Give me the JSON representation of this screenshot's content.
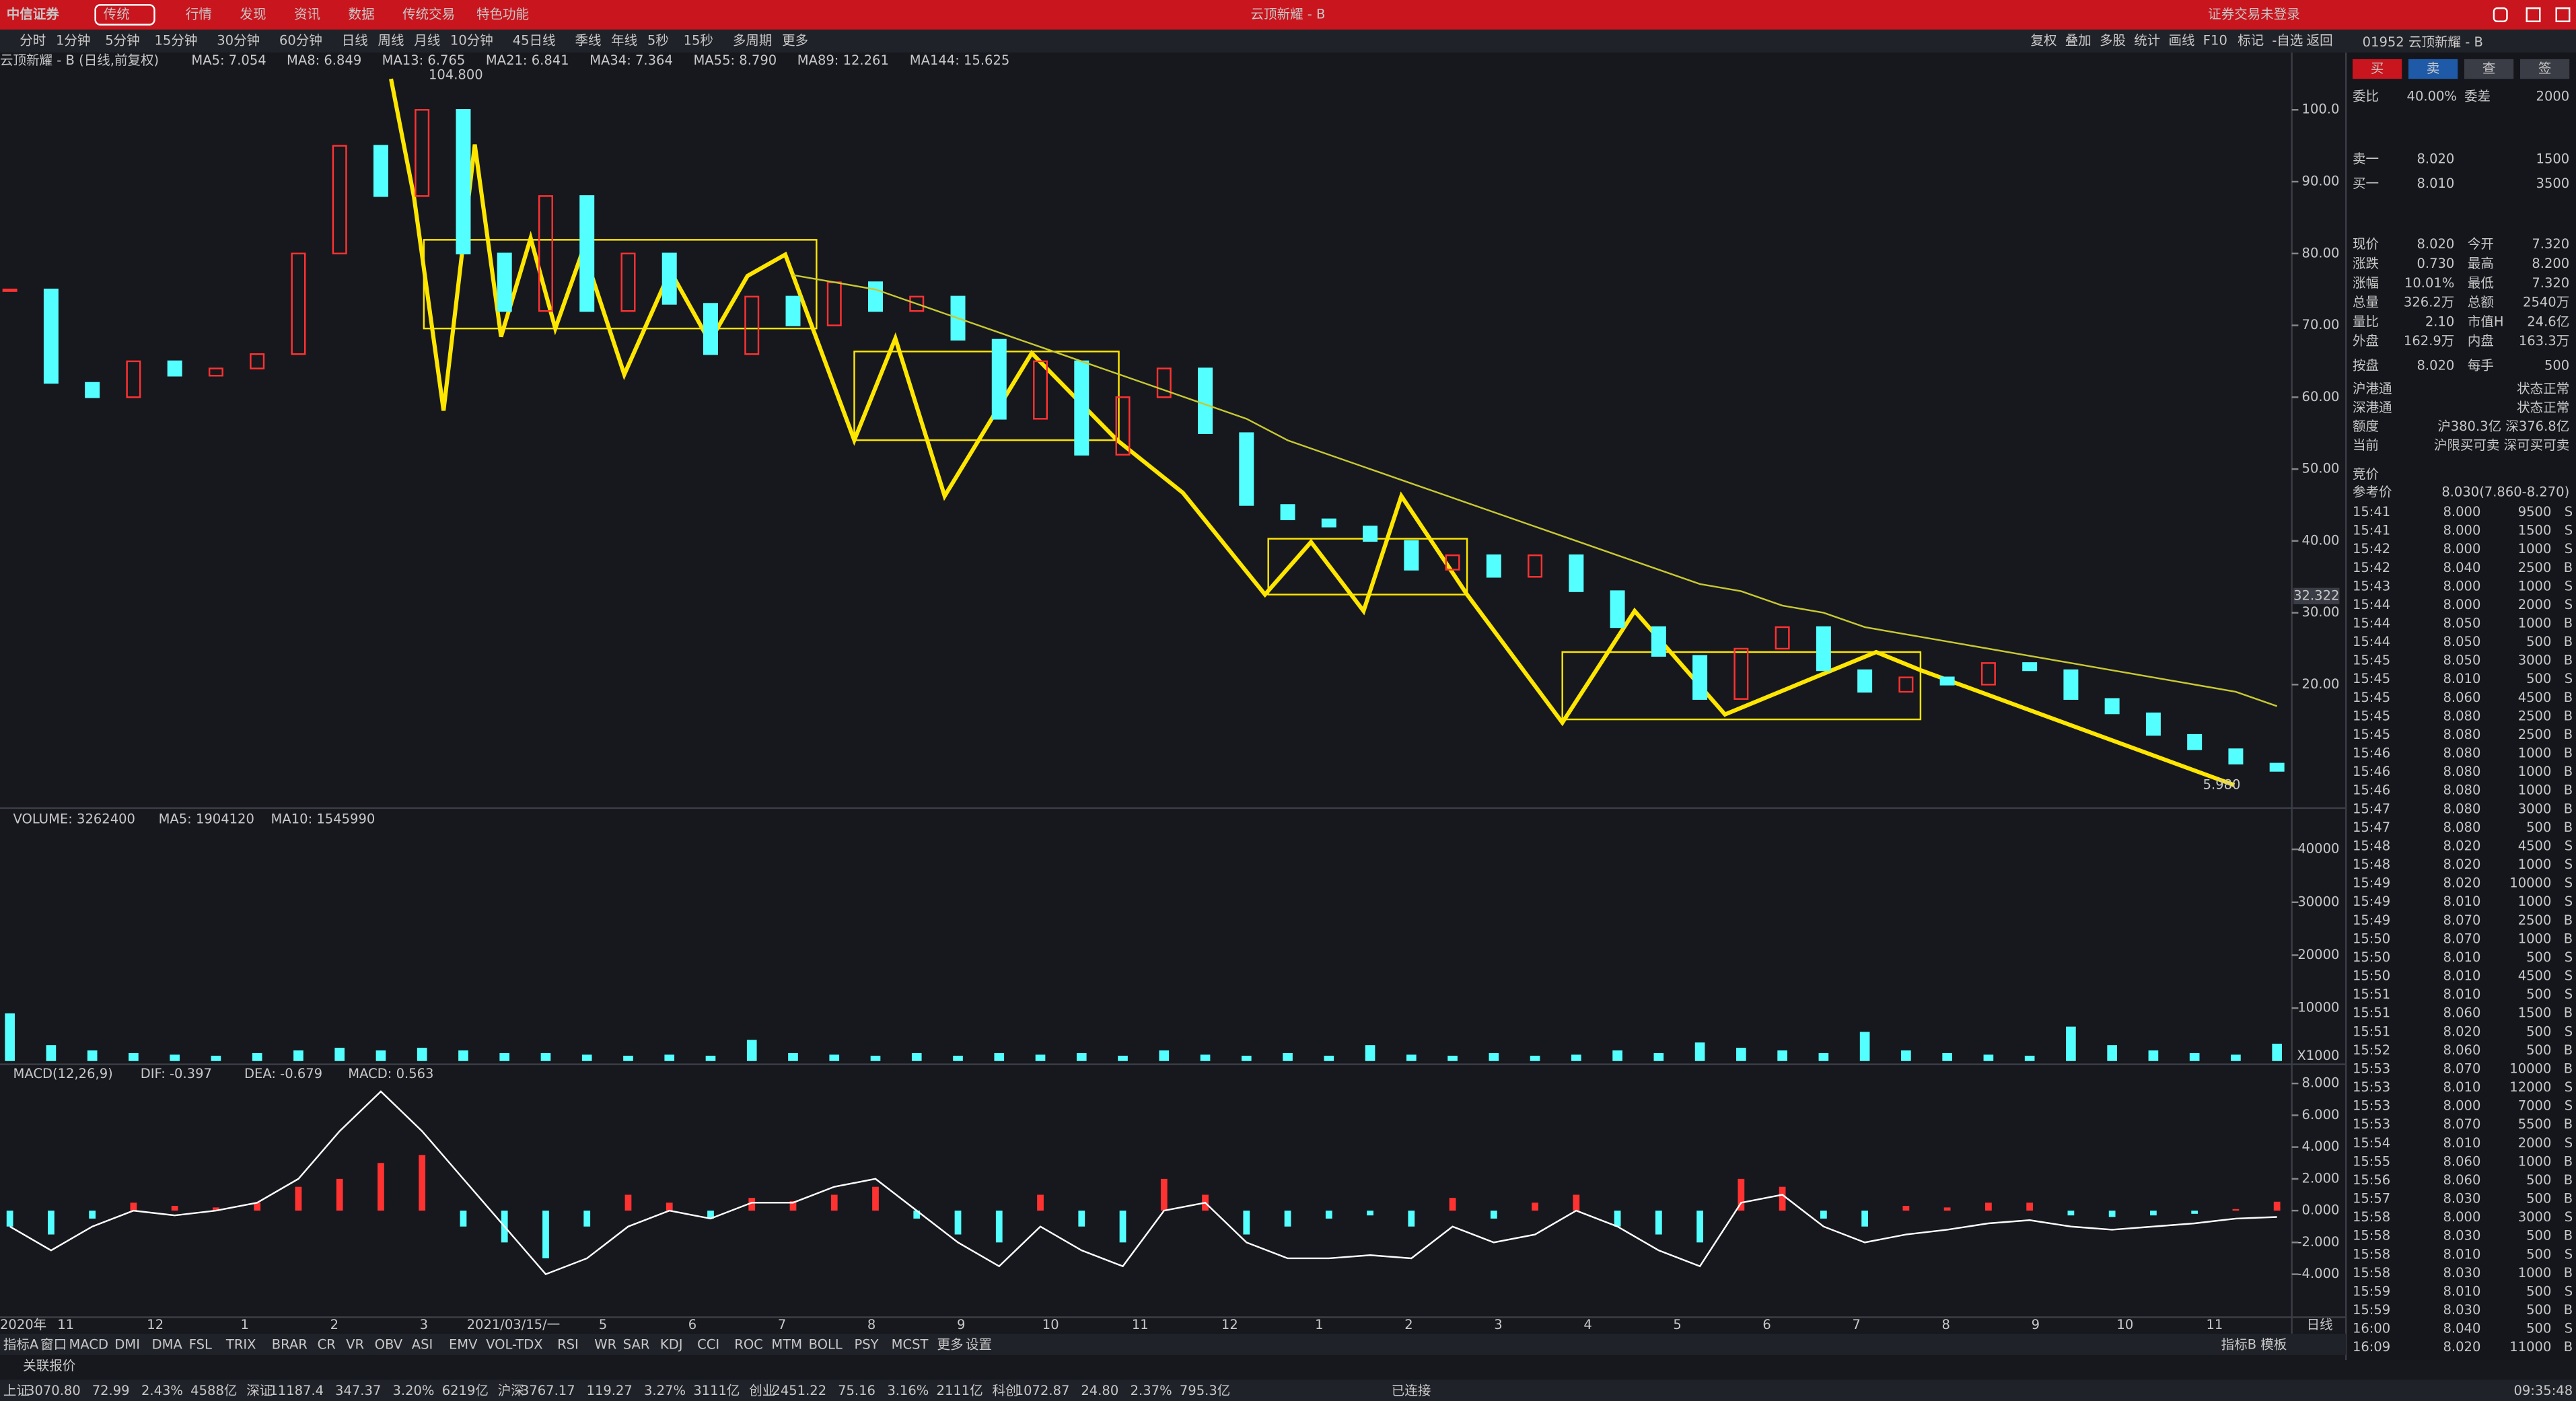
{
  "titlebar": {
    "logo": "中信证券",
    "mode": "传统",
    "nav": [
      "行情",
      "发现",
      "资讯",
      "数据",
      "传统交易",
      "特色功能"
    ],
    "title": "云顶新耀 - B",
    "login": "证券交易未登录"
  },
  "periods": [
    "分时",
    "1分钟",
    "5分钟",
    "15分钟",
    "30分钟",
    "60分钟",
    "日线",
    "周线",
    "月线",
    "10分钟",
    "45日线",
    "季线",
    "年线",
    "5秒",
    "15秒",
    "多周期",
    "更多"
  ],
  "tools": [
    "复权",
    "叠加",
    "多股",
    "统计",
    "画线",
    "F10",
    "标记",
    "-自选",
    "返回"
  ],
  "chart_data": [
    {
      "type": "candlestick",
      "title": "云顶新耀 - B (日线,前复权)",
      "indicators": [
        {
          "text": "MA5: 7.054",
          "color": "#ffffff"
        },
        {
          "text": "MA8: 6.849",
          "color": "#e8c800"
        },
        {
          "text": "MA13: 6.765",
          "color": "#d040d0"
        },
        {
          "text": "MA21: 6.841",
          "color": "#40e040"
        },
        {
          "text": "MA34: 7.364",
          "color": "#cccccc"
        },
        {
          "text": "MA55: 8.790",
          "color": "#3a9ad9"
        },
        {
          "text": "MA89: 12.261",
          "color": "#cccccc"
        },
        {
          "text": "MA144: 15.625",
          "color": "#e8e800"
        }
      ],
      "ylim": [
        3.5,
        105
      ],
      "yticks": [
        {
          "value": 100,
          "label": "100.0"
        },
        {
          "value": 90,
          "label": "90.00"
        },
        {
          "value": 80,
          "label": "80.00"
        },
        {
          "value": 70,
          "label": "70.00"
        },
        {
          "value": 60,
          "label": "60.00"
        },
        {
          "value": 50,
          "label": "50.00"
        },
        {
          "value": 40,
          "label": "40.00"
        },
        {
          "value": 30,
          "label": "30.00"
        },
        {
          "value": 20,
          "label": "20.00"
        }
      ],
      "up_color": "#ff3232",
      "down_color": "#54ffff",
      "values": [
        75,
        62,
        60,
        65,
        63,
        64,
        66,
        80,
        95,
        88,
        100,
        80,
        72,
        88,
        72,
        80,
        73,
        66,
        74,
        70,
        76,
        72,
        74,
        68,
        57,
        65,
        52,
        60,
        64,
        55,
        45,
        43,
        42,
        40,
        36,
        38,
        35,
        38,
        33,
        28,
        24,
        18,
        25,
        28,
        22,
        19,
        21,
        20,
        23,
        22,
        18,
        16,
        13,
        11,
        9,
        8
      ],
      "lines": [
        {
          "color": "#c8c832",
          "values": [
            null,
            null,
            null,
            null,
            null,
            null,
            null,
            null,
            null,
            null,
            null,
            null,
            null,
            null,
            null,
            null,
            null,
            null,
            null,
            77,
            76,
            75,
            73,
            71,
            69,
            67,
            65,
            63,
            61,
            59,
            57,
            54,
            52,
            50,
            48,
            46,
            44,
            42,
            40,
            38,
            36,
            34,
            33,
            31,
            30,
            28,
            27,
            26,
            25,
            24,
            23,
            22,
            21,
            20,
            19,
            17
          ]
        }
      ],
      "annotations": [
        {
          "value": 104.8,
          "label": "104.800"
        },
        {
          "value": 5.98,
          "label": "5.980"
        },
        {
          "value": 32.322,
          "label": "32.322"
        }
      ]
    },
    {
      "type": "bar",
      "title": "VOLUME: 3262400",
      "indicators": [
        {
          "text": "MA5: 1904120",
          "color": "#ffffff"
        },
        {
          "text": "MA10: 1545990",
          "color": "#e8c800"
        }
      ],
      "ylim": [
        0,
        45000
      ],
      "yticks": [
        40000,
        30000,
        20000,
        10000
      ],
      "unit": "X1000",
      "color": "#54ffff",
      "values": [
        9000,
        3000,
        2000,
        1500,
        1200,
        1000,
        1500,
        2000,
        2500,
        2000,
        2500,
        2000,
        1500,
        1500,
        1200,
        1000,
        1200,
        1000,
        4000,
        1500,
        1200,
        1000,
        1500,
        1000,
        1500,
        1200,
        1500,
        1000,
        2000,
        1200,
        1000,
        1500,
        1000,
        3000,
        1200,
        1000,
        1500,
        1000,
        1200,
        2000,
        1500,
        3500,
        2500,
        2000,
        1500,
        5500,
        2000,
        1500,
        1200,
        1000,
        6500,
        3000,
        2000,
        1500,
        1200,
        3262
      ]
    },
    {
      "type": "macd",
      "title": "MACD(12,26,9)",
      "indicators": [
        {
          "text": "DIF: -0.397",
          "color": "#ffffff"
        },
        {
          "text": "DEA: -0.679",
          "color": "#e8c800"
        },
        {
          "text": "MACD: 0.563",
          "color": "#d040d0"
        }
      ],
      "ylim": [
        -6.5,
        9
      ],
      "yticks": [
        {
          "value": 8,
          "label": "8.000"
        },
        {
          "value": 6,
          "label": "6.000"
        },
        {
          "value": 4,
          "label": "4.000"
        },
        {
          "value": 2,
          "label": "2.000"
        },
        {
          "value": 0,
          "label": "0.000"
        },
        {
          "value": -2,
          "label": "-2.000"
        },
        {
          "value": -4,
          "label": "-4.000"
        }
      ],
      "values": [
        -1,
        -1.5,
        -0.5,
        0.5,
        0.3,
        0.2,
        0.5,
        1.5,
        2,
        3,
        3.5,
        -1,
        -2,
        -3,
        -1,
        1,
        0.5,
        -0.5,
        0.8,
        0.6,
        1,
        1.5,
        -0.5,
        -1.5,
        -2,
        1,
        -1,
        -2,
        2,
        1,
        -1.5,
        -1,
        -0.5,
        -0.3,
        -1,
        0.8,
        -0.5,
        0.5,
        1,
        -1,
        -1.5,
        -2,
        2,
        1.5,
        -0.5,
        -1,
        0.3,
        0.2,
        0.5,
        0.5,
        -0.3,
        -0.4,
        -0.3,
        -0.2,
        0.1,
        0.563
      ],
      "dif": [
        -1,
        -2.5,
        -1,
        0,
        -0.3,
        0,
        0.5,
        2,
        5,
        7.5,
        5,
        2,
        -1,
        -4,
        -3,
        -1,
        0,
        -0.5,
        0.5,
        0.5,
        1.5,
        2,
        0,
        -2,
        -3.5,
        -1,
        -2.5,
        -3.5,
        0,
        0.5,
        -2,
        -3,
        -3,
        -2.8,
        -3,
        -1,
        -2,
        -1.5,
        0,
        -1,
        -2.5,
        -3.5,
        0.5,
        1,
        -1,
        -2,
        -1.5,
        -1.2,
        -0.8,
        -0.6,
        -1,
        -1.2,
        -1,
        -0.8,
        -0.5,
        -0.397
      ]
    }
  ],
  "date_axis": [
    "2020年",
    "11",
    "12",
    "1",
    "2",
    "3",
    "2021/03/15/一",
    "5",
    "6",
    "7",
    "8",
    "9",
    "10",
    "11",
    "12",
    "1",
    "2",
    "3",
    "4",
    "5",
    "6",
    "7",
    "8",
    "9",
    "10",
    "11"
  ],
  "period_label": "日线",
  "indicator_tabs": [
    "指标A",
    "窗口",
    "MACD",
    "DMI",
    "DMA",
    "FSL",
    "TRIX",
    "BRAR",
    "CR",
    "VR",
    "OBV",
    "ASI",
    "EMV",
    "VOL-TDX",
    "RSI",
    "WR",
    "SAR",
    "KDJ",
    "CCI",
    "ROC",
    "MTM",
    "BOLL",
    "PSY",
    "MCST",
    "更多",
    "设置"
  ],
  "right_tabs": [
    "指标B",
    "模板"
  ],
  "related": "关联报价",
  "quote": {
    "code": "01952",
    "name": "云顶新耀 - B",
    "buttons": [
      "买",
      "卖",
      "查",
      "签"
    ],
    "book": [
      [
        "委比",
        "40.00%",
        "委差",
        "2000"
      ],
      [
        "卖一",
        "8.020",
        "1500"
      ],
      [
        "买一",
        "8.010",
        "3500"
      ]
    ],
    "stats": [
      [
        "现价",
        "8.020",
        "今开",
        "7.320"
      ],
      [
        "涨跌",
        "0.730",
        "最高",
        "8.200"
      ],
      [
        "涨幅",
        "10.01%",
        "最低",
        "7.320"
      ],
      [
        "总量",
        "326.2万",
        "总额",
        "2540万"
      ],
      [
        "量比",
        "2.10",
        "市值H",
        "24.6亿"
      ],
      [
        "外盘",
        "162.9万",
        "内盘",
        "163.3万"
      ],
      [
        "按盘",
        "8.020",
        "每手",
        "500"
      ]
    ],
    "connect": [
      [
        "沪港通",
        "状态正常"
      ],
      [
        "深港通",
        "状态正常"
      ],
      [
        "额度",
        "沪380.3亿 深376.8亿"
      ],
      [
        "当前",
        "沪限买可卖 深可买可卖"
      ]
    ],
    "auction": "竞价",
    "ref": [
      "参考价",
      "8.030(7.860-8.270)"
    ],
    "trades": [
      [
        "15:41",
        "8.000",
        "9500",
        "S"
      ],
      [
        "15:41",
        "8.000",
        "1500",
        "S"
      ],
      [
        "15:42",
        "8.000",
        "1000",
        "S"
      ],
      [
        "15:42",
        "8.040",
        "2500",
        "B"
      ],
      [
        "15:43",
        "8.000",
        "1000",
        "S"
      ],
      [
        "15:44",
        "8.000",
        "2000",
        "S"
      ],
      [
        "15:44",
        "8.050",
        "1000",
        "B"
      ],
      [
        "15:44",
        "8.050",
        "500",
        "B"
      ],
      [
        "15:45",
        "8.050",
        "3000",
        "B"
      ],
      [
        "15:45",
        "8.010",
        "500",
        "S"
      ],
      [
        "15:45",
        "8.060",
        "4500",
        "B"
      ],
      [
        "15:45",
        "8.080",
        "2500",
        "B"
      ],
      [
        "15:45",
        "8.080",
        "2500",
        "B"
      ],
      [
        "15:46",
        "8.080",
        "1000",
        "B"
      ],
      [
        "15:46",
        "8.080",
        "1000",
        "B"
      ],
      [
        "15:46",
        "8.080",
        "1000",
        "B"
      ],
      [
        "15:47",
        "8.080",
        "3000",
        "B"
      ],
      [
        "15:47",
        "8.080",
        "500",
        "B"
      ],
      [
        "15:48",
        "8.020",
        "4500",
        "S"
      ],
      [
        "15:48",
        "8.020",
        "1000",
        "S"
      ],
      [
        "15:49",
        "8.020",
        "10000",
        "S"
      ],
      [
        "15:49",
        "8.010",
        "1000",
        "S"
      ],
      [
        "15:49",
        "8.070",
        "2500",
        "B"
      ],
      [
        "15:50",
        "8.070",
        "1000",
        "B"
      ],
      [
        "15:50",
        "8.010",
        "500",
        "S"
      ],
      [
        "15:50",
        "8.010",
        "4500",
        "S"
      ],
      [
        "15:51",
        "8.010",
        "500",
        "S"
      ],
      [
        "15:51",
        "8.060",
        "1500",
        "B"
      ],
      [
        "15:51",
        "8.020",
        "500",
        "S"
      ],
      [
        "15:52",
        "8.060",
        "500",
        "B"
      ],
      [
        "15:53",
        "8.070",
        "10000",
        "B"
      ],
      [
        "15:53",
        "8.010",
        "12000",
        "S"
      ],
      [
        "15:53",
        "8.000",
        "7000",
        "S"
      ],
      [
        "15:53",
        "8.070",
        "5500",
        "B"
      ],
      [
        "15:54",
        "8.010",
        "2000",
        "S"
      ],
      [
        "15:55",
        "8.060",
        "1000",
        "B"
      ],
      [
        "15:56",
        "8.060",
        "500",
        "B"
      ],
      [
        "15:57",
        "8.030",
        "500",
        "B"
      ],
      [
        "15:58",
        "8.000",
        "3000",
        "S"
      ],
      [
        "15:58",
        "8.030",
        "500",
        "B"
      ],
      [
        "15:58",
        "8.010",
        "500",
        "S"
      ],
      [
        "15:58",
        "8.030",
        "1000",
        "B"
      ],
      [
        "15:59",
        "8.010",
        "500",
        "S"
      ],
      [
        "15:59",
        "8.030",
        "500",
        "B"
      ],
      [
        "16:00",
        "8.040",
        "500",
        "S"
      ],
      [
        "16:09",
        "8.020",
        "11000",
        "B"
      ]
    ]
  },
  "status": {
    "indices": [
      {
        "label": "上证",
        "values": [
          "3070.80",
          "72.99",
          "2.43%",
          "4588亿"
        ]
      },
      {
        "label": "深证",
        "values": [
          "11187.4",
          "347.37",
          "3.20%",
          "6219亿"
        ]
      },
      {
        "label": "沪深",
        "values": [
          "3767.17",
          "119.27",
          "3.27%",
          "3111亿"
        ]
      },
      {
        "label": "创业",
        "values": [
          "2451.22",
          "75.16",
          "3.16%",
          "2111亿"
        ]
      },
      {
        "label": "科创",
        "values": [
          "1072.87",
          "24.80",
          "2.37%",
          "795.3亿"
        ]
      }
    ],
    "connection": "已连接",
    "time": "09:35:48"
  }
}
